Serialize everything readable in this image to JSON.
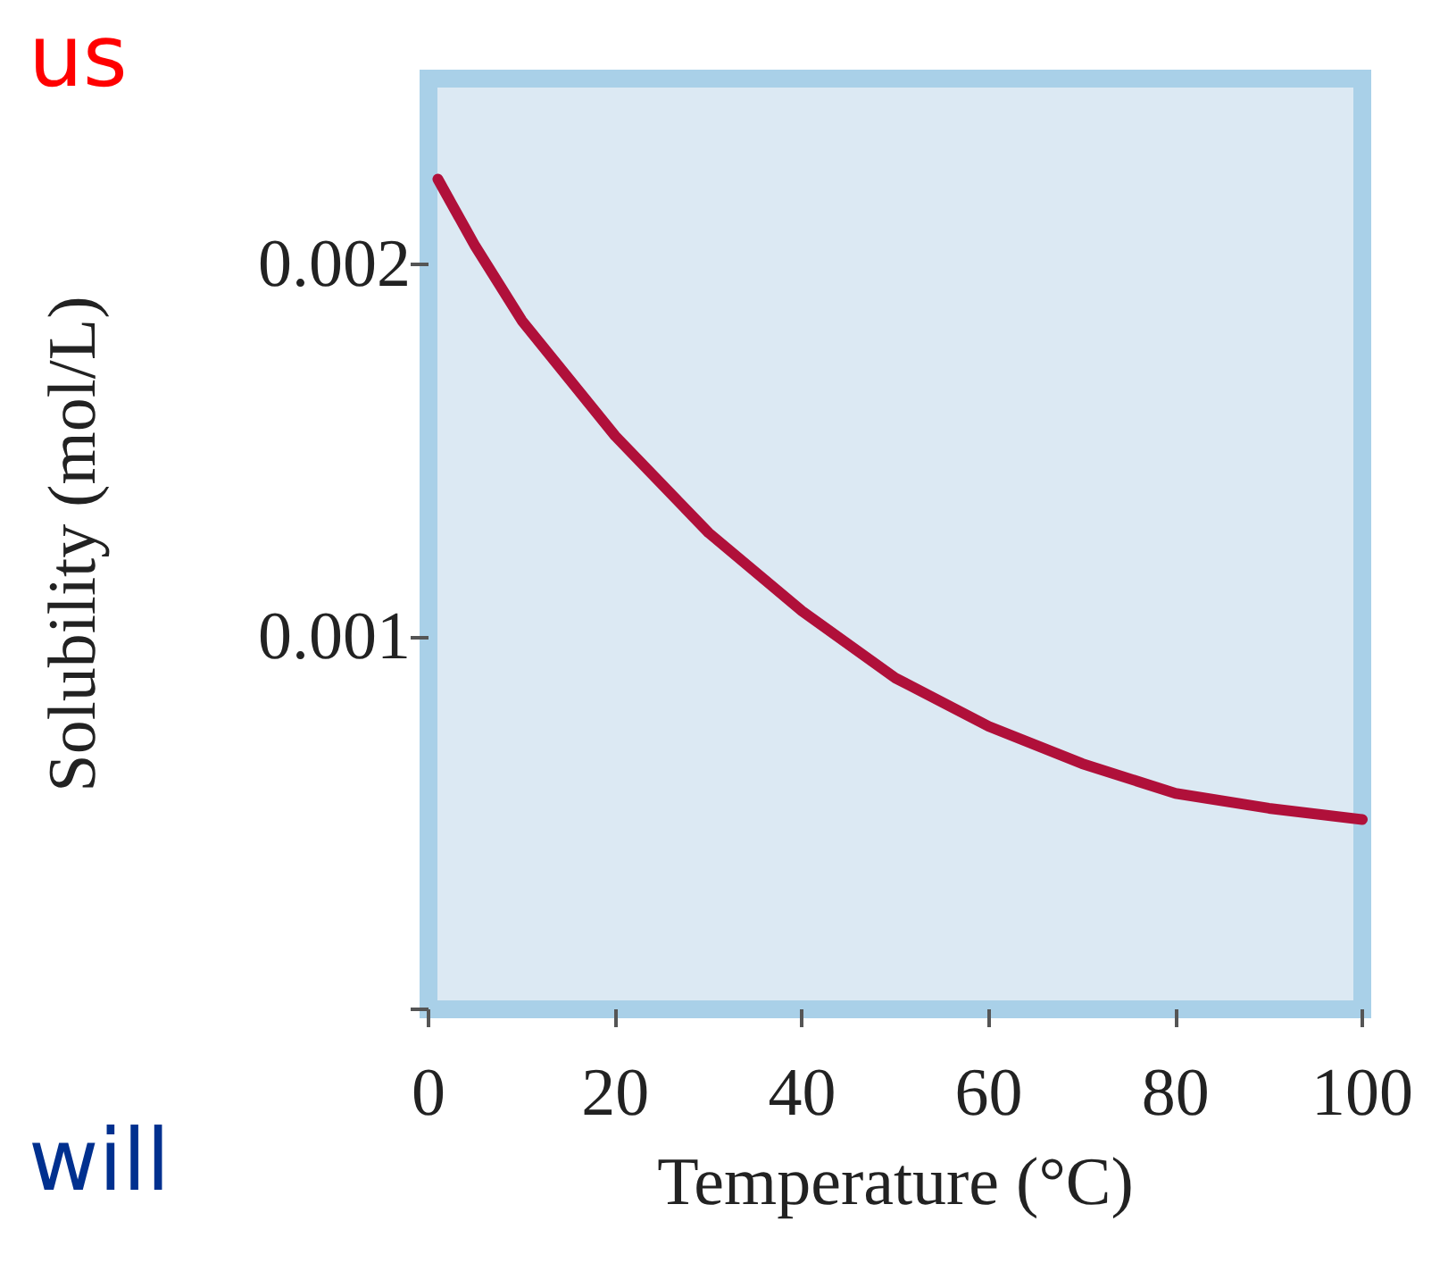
{
  "chart_data": {
    "type": "line",
    "xlabel": "Temperature (°C)",
    "ylabel": "Solubility (mol/L)",
    "annotations": [
      "us",
      "will"
    ],
    "x": [
      1,
      5,
      10,
      20,
      30,
      40,
      50,
      60,
      70,
      80,
      90,
      100
    ],
    "series": [
      {
        "color": "#b0103a",
        "values": [
          0.00223,
          0.00205,
          0.00185,
          0.00154,
          0.00128,
          0.00107,
          0.00089,
          0.00076,
          0.00066,
          0.00058,
          0.00054,
          0.00051
        ]
      }
    ],
    "xlim": [
      0,
      100
    ],
    "xticks": [
      0,
      20,
      40,
      60,
      80,
      100
    ],
    "ylim": [
      0,
      0.0025
    ],
    "yticks": [
      {
        "value": 0,
        "label": null
      },
      0.001,
      0.002
    ],
    "grid": false,
    "marker": "none",
    "line_style": "solid"
  }
}
